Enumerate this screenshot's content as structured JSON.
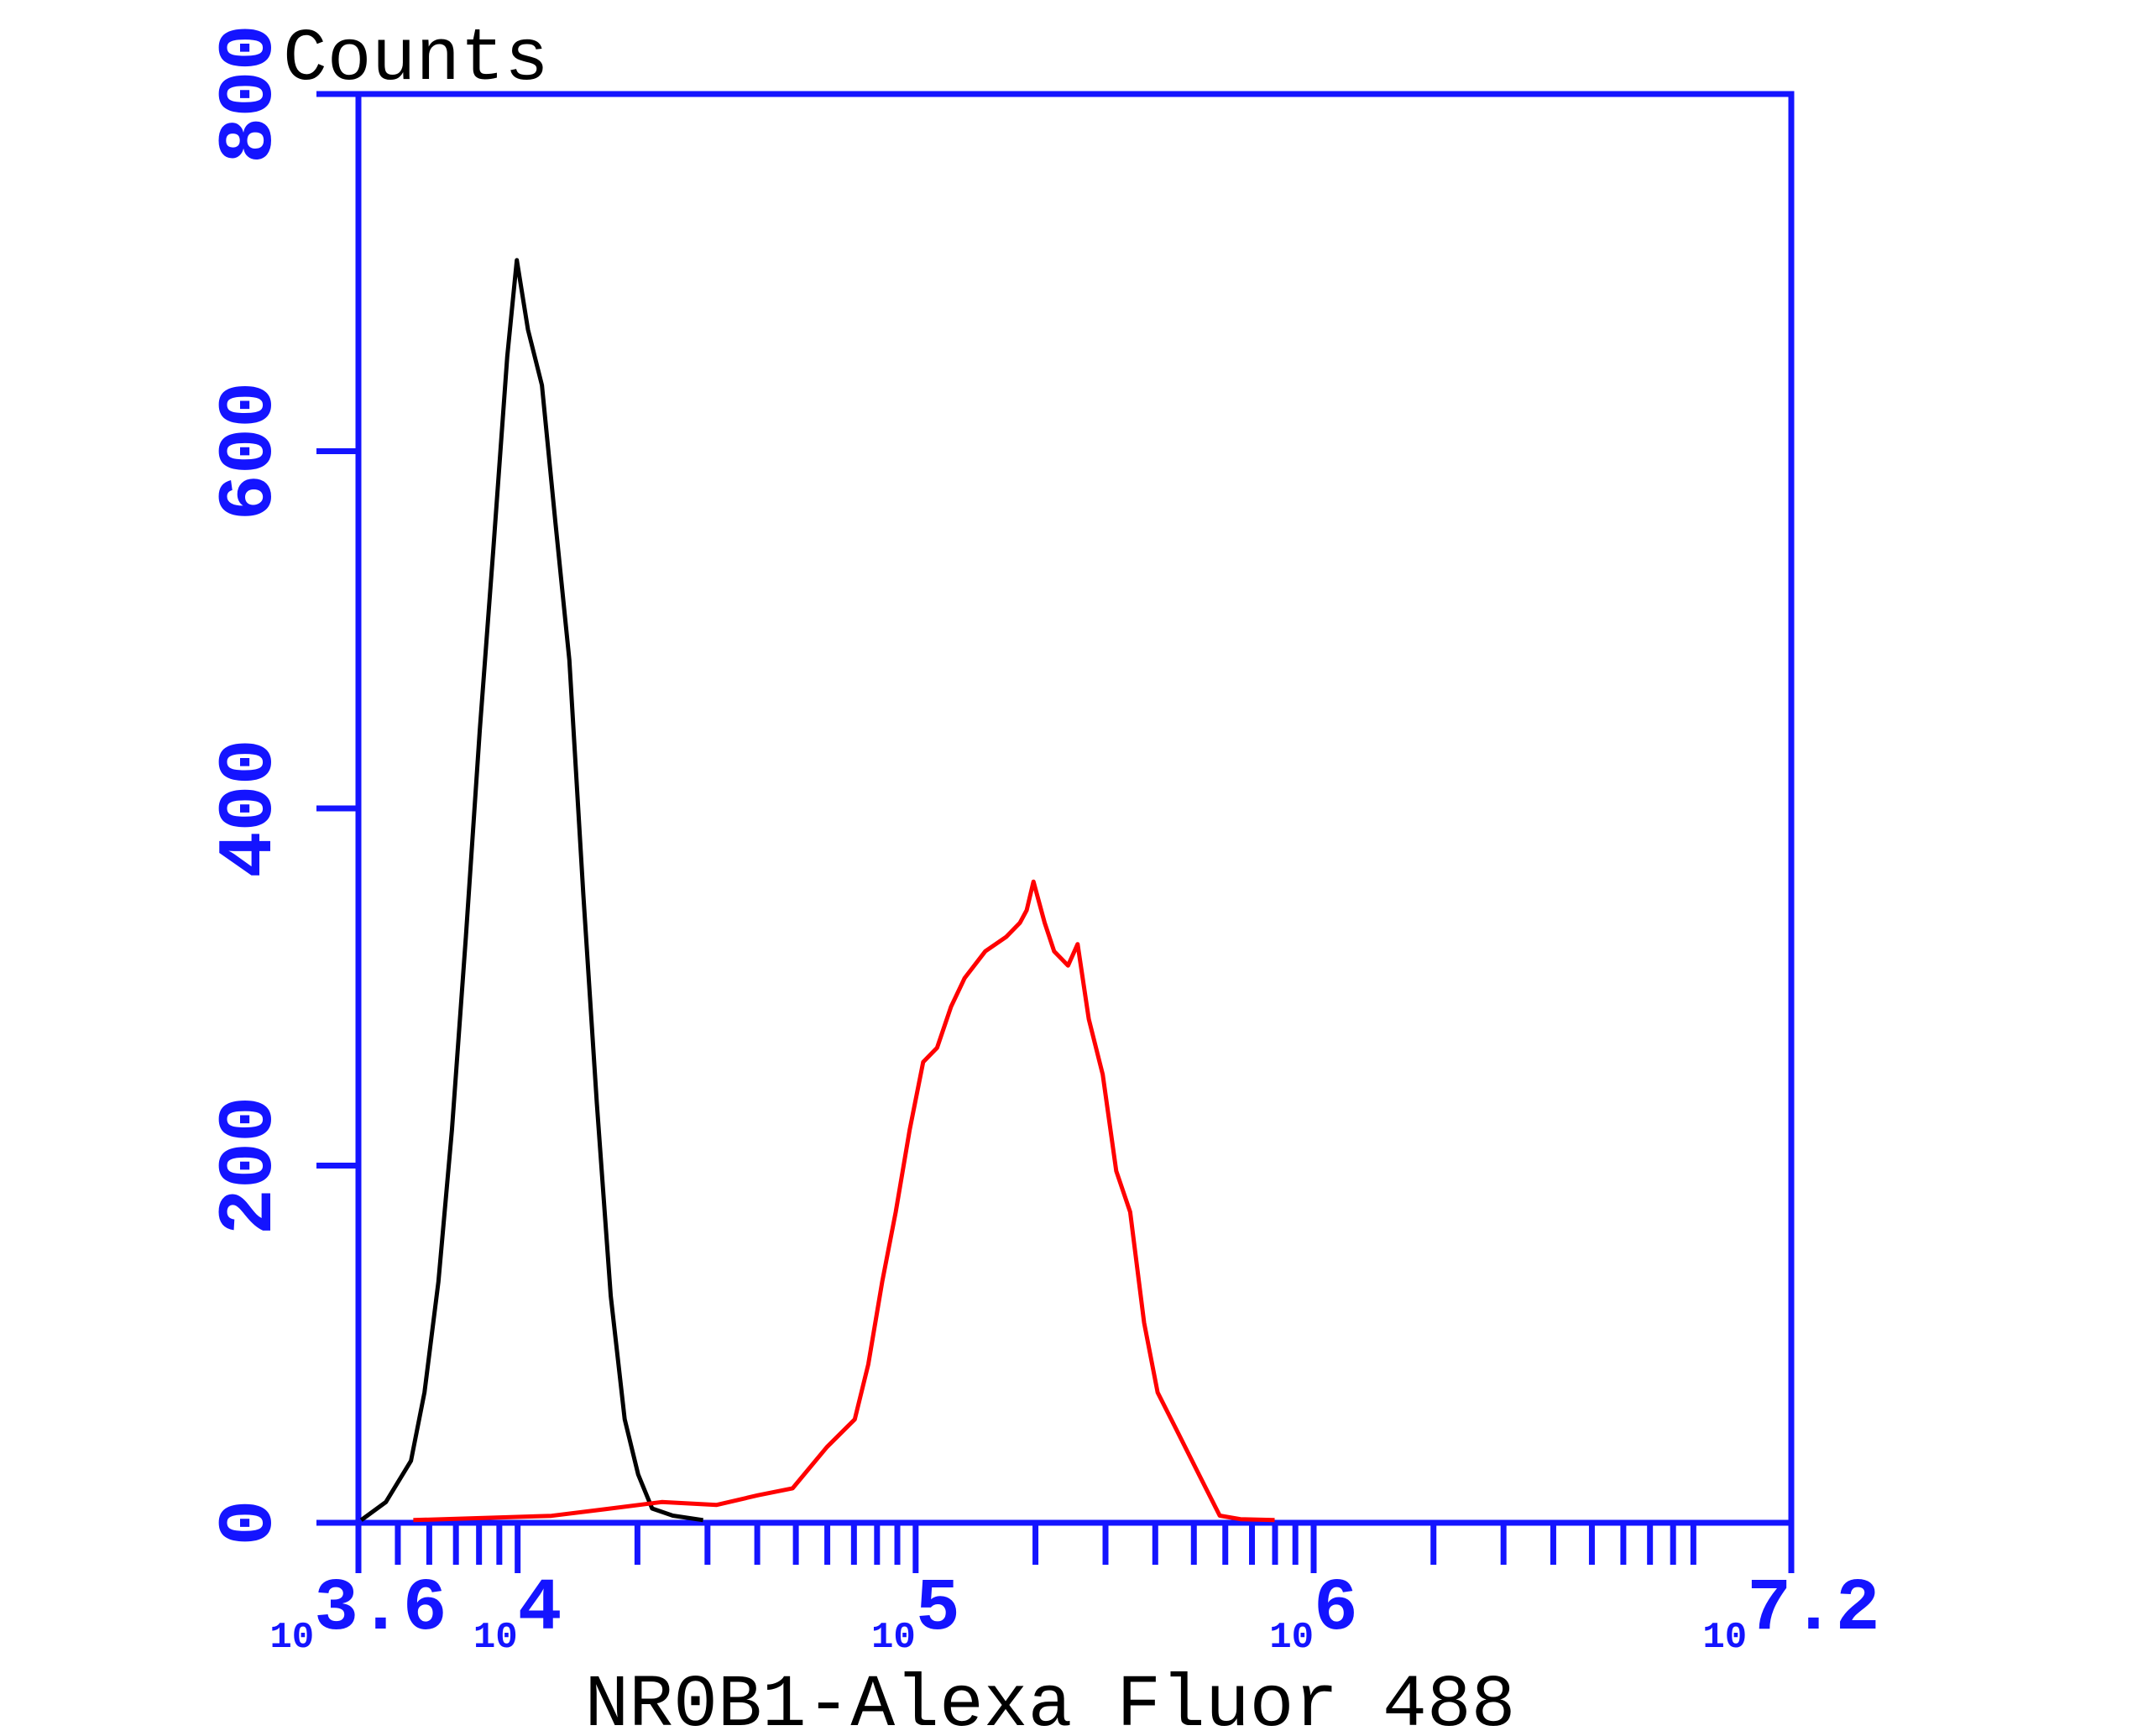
{
  "chart_data": {
    "type": "line",
    "title": "Counts",
    "x_label": "NR0B1-Alexa Fluor 488",
    "axis_color": "#1414ff",
    "x_scale": "log10 exponent",
    "xlim": [
      3.6,
      7.2
    ],
    "xtick_base": "10",
    "xticks": [
      {
        "value": 3.6,
        "label": "3.6"
      },
      4,
      5,
      6,
      {
        "value": 7.2,
        "label": "7.2"
      }
    ],
    "xminor_ticks": [
      3.699,
      3.778,
      3.845,
      3.903,
      3.954,
      4.301,
      4.477,
      4.602,
      4.699,
      4.778,
      4.845,
      4.903,
      4.954,
      5.301,
      5.477,
      5.602,
      5.699,
      5.778,
      5.845,
      5.903,
      5.954,
      6.301,
      6.477,
      6.602,
      6.699,
      6.778,
      6.845,
      6.903,
      6.954
    ],
    "ylim": [
      0,
      800
    ],
    "yticks": [
      0,
      200,
      400,
      600,
      800
    ],
    "series": [
      {
        "color": "#000000",
        "x": [
          3.607,
          3.669,
          3.732,
          3.766,
          3.801,
          3.835,
          3.87,
          3.905,
          3.939,
          3.974,
          3.998,
          4.026,
          4.061,
          4.095,
          4.13,
          4.165,
          4.199,
          4.234,
          4.269,
          4.303,
          4.338,
          4.39,
          4.466
        ],
        "values": [
          1.5,
          11.6,
          34.7,
          73,
          135,
          220,
          328,
          444,
          545,
          653,
          707,
          668,
          637,
          560,
          483,
          352,
          235,
          127,
          58,
          27,
          8,
          4,
          1.5
        ]
      },
      {
        "color": "#ff0000",
        "x": [
          3.738,
          4.085,
          4.223,
          4.362,
          4.5,
          4.604,
          4.691,
          4.777,
          4.847,
          4.881,
          4.916,
          4.95,
          4.985,
          5.019,
          5.054,
          5.089,
          5.123,
          5.175,
          5.227,
          5.262,
          5.279,
          5.296,
          5.324,
          5.348,
          5.383,
          5.407,
          5.435,
          5.47,
          5.504,
          5.539,
          5.574,
          5.608,
          5.66,
          5.712,
          5.764,
          5.816,
          5.902
        ],
        "values": [
          1.5,
          3.9,
          7.7,
          11.6,
          10,
          15.4,
          19.3,
          42.4,
          57.9,
          88.7,
          135,
          174,
          220,
          258,
          266,
          289,
          305,
          320,
          328,
          336,
          343,
          359,
          336,
          320,
          312,
          324,
          282,
          251,
          197,
          174,
          112,
          73,
          50,
          27,
          4,
          2,
          1.5
        ]
      }
    ]
  }
}
